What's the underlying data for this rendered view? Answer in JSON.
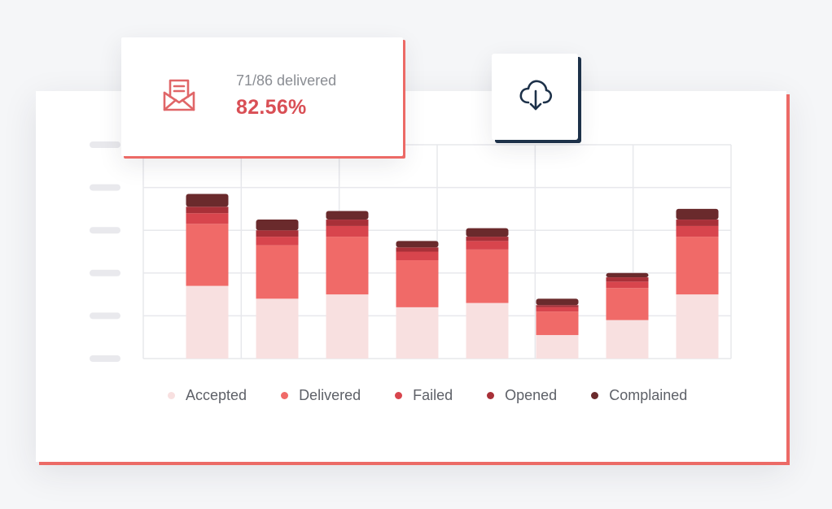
{
  "stat_card": {
    "caption": "71/86 delivered",
    "value": "82.56%",
    "icon": "envelope-open-letter-icon"
  },
  "download_button": {
    "icon": "cloud-download-icon"
  },
  "colors": {
    "accent": "#ec6a66",
    "dark_accent": "#1d3149",
    "accepted": "#f8e0e0",
    "delivered": "#f06a68",
    "failed": "#d8454d",
    "opened": "#a83038",
    "complained": "#6a2a2c"
  },
  "chart_data": {
    "type": "bar",
    "stacked": true,
    "title": "",
    "xlabel": "",
    "ylabel": "",
    "ylim": [
      0,
      100
    ],
    "y_tick_labels_visible": false,
    "grid": true,
    "legend_position": "bottom",
    "categories": [
      "",
      "",
      "",
      "",
      "",
      "",
      "",
      ""
    ],
    "series": [
      {
        "name": "Accepted",
        "color": "#f8e0e0",
        "values": [
          34,
          28,
          30,
          24,
          26,
          11,
          18,
          30
        ]
      },
      {
        "name": "Delivered",
        "color": "#f06a68",
        "values": [
          29,
          25,
          27,
          22,
          25,
          11,
          15,
          27
        ]
      },
      {
        "name": "Failed",
        "color": "#d8454d",
        "values": [
          5,
          4,
          5,
          4,
          4,
          2,
          3,
          5
        ]
      },
      {
        "name": "Opened",
        "color": "#a83038",
        "values": [
          3,
          3,
          3,
          2,
          2,
          1,
          2,
          3
        ]
      },
      {
        "name": "Complained",
        "color": "#6a2a2c",
        "values": [
          6,
          5,
          4,
          3,
          4,
          3,
          2,
          5
        ]
      }
    ]
  }
}
